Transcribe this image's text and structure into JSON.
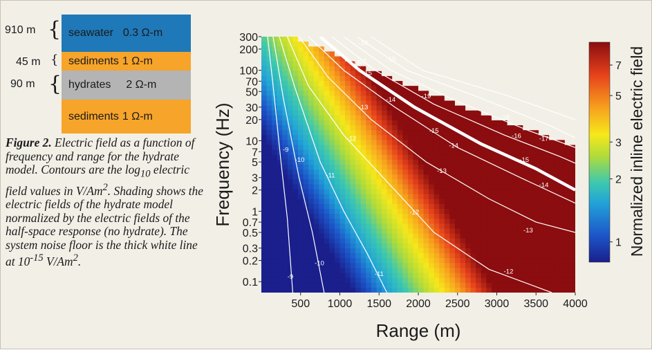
{
  "model": {
    "layers": [
      {
        "thickness": "910 m",
        "name": "seawater",
        "resistivity": "0.3 Ω-m",
        "color": "#1f78b8"
      },
      {
        "thickness": "45 m",
        "name": "sediments",
        "resistivity": "1 Ω-m",
        "color": "#f7a42a"
      },
      {
        "thickness": "90 m",
        "name": "hydrates",
        "resistivity": "2 Ω-m",
        "color": "#b4b4b4"
      },
      {
        "thickness": "",
        "name": "sediments",
        "resistivity": "1 Ω-m",
        "color": "#f7a42a"
      }
    ]
  },
  "caption": {
    "label": "Figure 2.",
    "text_1": " Electric field as a function of frequency and range for the hydrate model. Contours are the log",
    "sub_1": "10",
    "text_2": " electric field values in V/Am",
    "sup_1": "2",
    "text_3": ". Shading shows the electric fields of the hydrate model normalized by the electric fields of the half-space response (no hydrate). The system noise floor is the thick white line at 10",
    "sup_2": "-15",
    "text_4": " V/Am",
    "sup_3": "2",
    "text_5": "."
  },
  "chart_data": {
    "type": "heatmap",
    "xlabel": "Range (m)",
    "ylabel": "Frequency (Hz)",
    "colorbar_label": "Normalized inline electric field",
    "x_ticks": [
      500,
      1000,
      1500,
      2000,
      2500,
      3000,
      3500,
      4000
    ],
    "y_ticks": [
      {
        "v": 300,
        "label": "300"
      },
      {
        "v": 200,
        "label": "200"
      },
      {
        "v": 100,
        "label": "100"
      },
      {
        "v": 70,
        "label": "70"
      },
      {
        "v": 50,
        "label": "50"
      },
      {
        "v": 30,
        "label": "30"
      },
      {
        "v": 20,
        "label": "20"
      },
      {
        "v": 10,
        "label": "10"
      },
      {
        "v": 7,
        "label": "7"
      },
      {
        "v": 5,
        "label": "5"
      },
      {
        "v": 3,
        "label": "3"
      },
      {
        "v": 2,
        "label": "2"
      },
      {
        "v": 1,
        "label": "1"
      },
      {
        "v": 0.7,
        "label": "0.7"
      },
      {
        "v": 0.5,
        "label": "0.5"
      },
      {
        "v": 0.3,
        "label": "0.3"
      },
      {
        "v": 0.2,
        "label": "0.2"
      },
      {
        "v": 0.1,
        "label": "0.1"
      }
    ],
    "xlim": [
      0,
      4000
    ],
    "ylim": [
      0.07,
      300
    ],
    "y_scale": "log",
    "colorbar_ticks": [
      {
        "v": 7,
        "label": "7"
      },
      {
        "v": 5,
        "label": "5"
      },
      {
        "v": 3,
        "label": "3"
      },
      {
        "v": 2,
        "label": "2"
      },
      {
        "v": 1,
        "label": "1"
      }
    ],
    "colorbar_range": [
      0.8,
      9
    ],
    "noise_floor_level": -15,
    "contours": [
      {
        "level": -9,
        "label": "-9",
        "points": [
          [
            80,
            300
          ],
          [
            150,
            60
          ],
          [
            250,
            5
          ],
          [
            330,
            0.8
          ],
          [
            400,
            0.07
          ]
        ]
      },
      {
        "level": -10,
        "label": "-10",
        "points": [
          [
            150,
            300
          ],
          [
            280,
            40
          ],
          [
            480,
            3
          ],
          [
            650,
            0.5
          ],
          [
            800,
            0.07
          ]
        ]
      },
      {
        "level": -11,
        "label": "-11",
        "points": [
          [
            230,
            300
          ],
          [
            420,
            60
          ],
          [
            750,
            5
          ],
          [
            1050,
            1
          ],
          [
            1350,
            0.25
          ],
          [
            1600,
            0.07
          ]
        ]
      },
      {
        "level": -12,
        "label": "-12",
        "points": [
          [
            330,
            300
          ],
          [
            600,
            60
          ],
          [
            1050,
            12
          ],
          [
            1700,
            2
          ],
          [
            2200,
            0.5
          ],
          [
            2900,
            0.15
          ],
          [
            3700,
            0.07
          ]
        ]
      },
      {
        "level": -13,
        "label": "-13",
        "points": [
          [
            480,
            300
          ],
          [
            850,
            80
          ],
          [
            1400,
            20
          ],
          [
            2100,
            5
          ],
          [
            2900,
            1.5
          ],
          [
            3500,
            0.7
          ],
          [
            4000,
            0.5
          ]
        ]
      },
      {
        "level": -14,
        "label": "-14",
        "points": [
          [
            600,
            300
          ],
          [
            1050,
            100
          ],
          [
            1700,
            30
          ],
          [
            2500,
            8
          ],
          [
            3300,
            3
          ],
          [
            4000,
            1.3
          ]
        ]
      },
      {
        "level": -15,
        "label": "-15",
        "points": [
          [
            750,
            300
          ],
          [
            1250,
            100
          ],
          [
            1950,
            30
          ],
          [
            2800,
            9
          ],
          [
            3500,
            4
          ],
          [
            4000,
            2
          ]
        ]
      },
      {
        "level": -16,
        "label": "-16",
        "points": [
          [
            900,
            300
          ],
          [
            1450,
            100
          ],
          [
            2200,
            33
          ],
          [
            3100,
            12
          ],
          [
            3800,
            6
          ],
          [
            4000,
            4.8
          ]
        ]
      },
      {
        "level": -17,
        "label": "-17",
        "points": [
          [
            1050,
            300
          ],
          [
            1650,
            100
          ],
          [
            2500,
            36
          ],
          [
            3400,
            14
          ],
          [
            4000,
            8
          ]
        ]
      },
      {
        "level": -18,
        "label": "-18",
        "points": [
          [
            1220,
            300
          ],
          [
            1850,
            100
          ],
          [
            2800,
            40
          ],
          [
            3700,
            16
          ],
          [
            4000,
            11
          ]
        ]
      },
      {
        "level": -19,
        "label": "-19",
        "points": [
          [
            1400,
            300
          ],
          [
            2050,
            100
          ],
          [
            3100,
            45
          ],
          [
            4000,
            20
          ]
        ]
      }
    ],
    "contour_labels": [
      {
        "level": -9,
        "x": 310,
        "y": 7
      },
      {
        "level": -9,
        "x": 370,
        "y": 0.11
      },
      {
        "level": -10,
        "x": 490,
        "y": 5
      },
      {
        "level": -10,
        "x": 740,
        "y": 0.17
      },
      {
        "level": -11,
        "x": 880,
        "y": 3
      },
      {
        "level": -11,
        "x": 1500,
        "y": 0.12
      },
      {
        "level": -12,
        "x": 1150,
        "y": 10
      },
      {
        "level": -12,
        "x": 1950,
        "y": 0.9
      },
      {
        "level": -12,
        "x": 3150,
        "y": 0.13
      },
      {
        "level": -13,
        "x": 1300,
        "y": 28
      },
      {
        "level": -13,
        "x": 2300,
        "y": 3.5
      },
      {
        "level": -13,
        "x": 3400,
        "y": 0.5
      },
      {
        "level": -14,
        "x": 1650,
        "y": 36
      },
      {
        "level": -14,
        "x": 2450,
        "y": 8
      },
      {
        "level": -14,
        "x": 3600,
        "y": 2.2
      },
      {
        "level": -15,
        "x": 1350,
        "y": 86
      },
      {
        "level": -15,
        "x": 2200,
        "y": 13
      },
      {
        "level": -15,
        "x": 3350,
        "y": 5
      },
      {
        "level": -16,
        "x": 1200,
        "y": 120
      },
      {
        "level": -16,
        "x": 3250,
        "y": 11
      },
      {
        "level": -17,
        "x": 1280,
        "y": 125
      },
      {
        "level": -17,
        "x": 3600,
        "y": 10
      },
      {
        "level": -18,
        "x": 1300,
        "y": 230
      },
      {
        "level": -18,
        "x": 3100,
        "y": 20
      },
      {
        "level": -19,
        "x": 1650,
        "y": 135
      },
      {
        "level": -19,
        "x": 2100,
        "y": 40
      }
    ],
    "bad_region_boundary": [
      [
        350,
        300
      ],
      [
        800,
        200
      ],
      [
        1500,
        90
      ],
      [
        2200,
        45
      ],
      [
        3000,
        20
      ],
      [
        3600,
        12
      ],
      [
        4000,
        8
      ]
    ],
    "colors": {
      "colormap": [
        "#1a1f8c",
        "#1c55c8",
        "#22a3d8",
        "#3cc8b0",
        "#aedb3c",
        "#f6e81a",
        "#f7a21e",
        "#e6421b",
        "#8b0d0f"
      ],
      "plot_background": "#1c2a8e",
      "contour_line": "#ffffff",
      "noise_floor": "#ffffff"
    }
  }
}
